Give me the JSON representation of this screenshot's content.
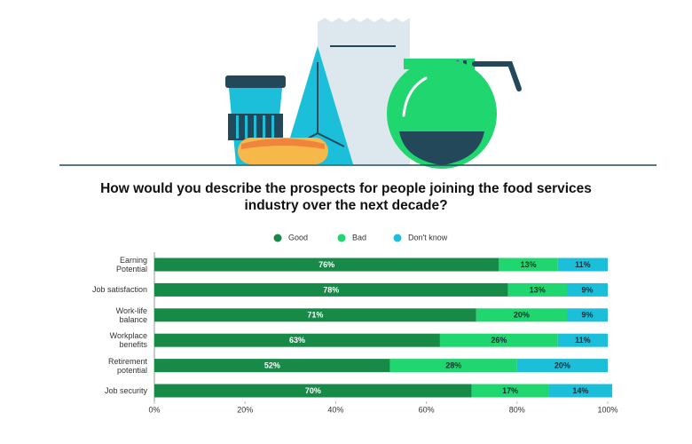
{
  "chart_data": {
    "type": "stacked-bar-horizontal",
    "title": "How would you describe the prospects for people joining the food services industry over the next decade?",
    "categories": [
      "Earning\nPotential",
      "Job satisfaction",
      "Work-life\nbalance",
      "Workplace\nbenefits",
      "Retirement\npotential",
      "Job security"
    ],
    "series": [
      {
        "name": "Good",
        "color": "#178a48",
        "values": [
          76,
          78,
          71,
          63,
          52,
          70
        ],
        "value_labels": [
          "76%",
          "78%",
          "71%",
          "63%",
          "52%",
          "70%"
        ]
      },
      {
        "name": "Bad",
        "color": "#1fd66f",
        "values": [
          13,
          13,
          20,
          26,
          28,
          17
        ],
        "value_labels": [
          "13%",
          "13%",
          "20%",
          "26%",
          "28%",
          "17%"
        ]
      },
      {
        "name": "Don't know",
        "color": "#1bbfd9",
        "values": [
          11,
          9,
          9,
          11,
          20,
          14
        ],
        "value_labels": [
          "11%",
          "9%",
          "9%",
          "11%",
          "20%",
          "14%"
        ]
      }
    ],
    "xlim": [
      0,
      100
    ],
    "xticks": [
      {
        "value": 0,
        "label": "0%"
      },
      {
        "value": 20,
        "label": "20%"
      },
      {
        "value": 40,
        "label": "40%"
      },
      {
        "value": 60,
        "label": "60%"
      },
      {
        "value": 80,
        "label": "80%"
      },
      {
        "value": 100,
        "label": "100%"
      }
    ],
    "legend": "top"
  }
}
